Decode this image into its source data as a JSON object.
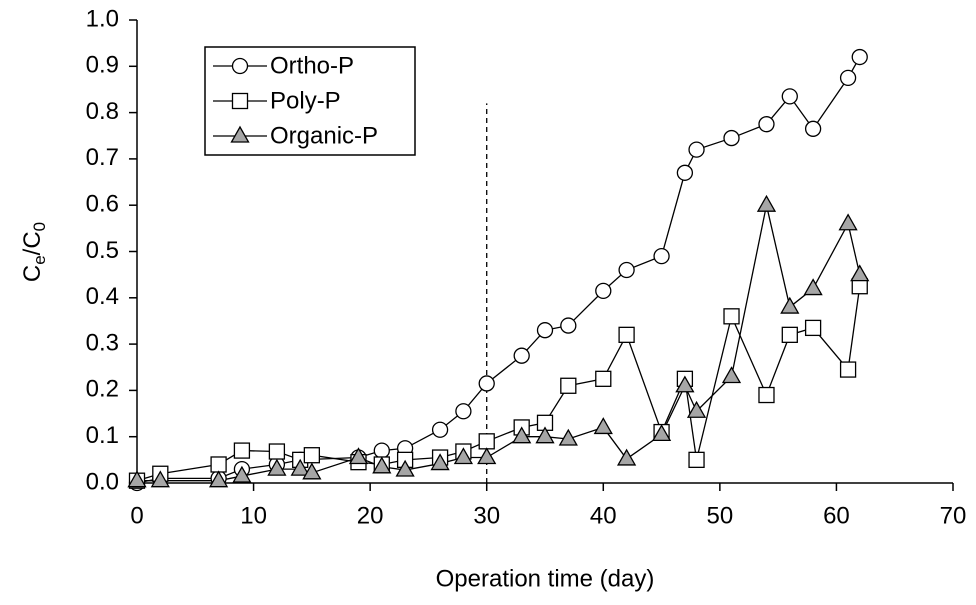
{
  "chart_data": {
    "type": "line",
    "xlabel": "Operation time  (day)",
    "ylabel": [
      "C",
      "e",
      "/C",
      "0"
    ],
    "xlim": [
      0,
      70
    ],
    "xticks": [
      0,
      10,
      20,
      30,
      40,
      50,
      60,
      70
    ],
    "ylim": [
      0,
      1
    ],
    "yticks": [
      {
        "value": 0,
        "label": "0.0"
      },
      {
        "value": 0.1,
        "label": "0.1"
      },
      {
        "value": 0.2,
        "label": "0.2"
      },
      {
        "value": 0.3,
        "label": "0.3"
      },
      {
        "value": 0.4,
        "label": "0.4"
      },
      {
        "value": 0.5,
        "label": "0.5"
      },
      {
        "value": 0.6,
        "label": "0.6"
      },
      {
        "value": 0.7,
        "label": "0.7"
      },
      {
        "value": 0.8,
        "label": "0.8"
      },
      {
        "value": 0.9,
        "label": "0.9"
      },
      {
        "value": 1,
        "label": "1.0"
      }
    ],
    "vline": {
      "x": 30,
      "ymax": 0.82
    },
    "legend": "upper left",
    "series": [
      {
        "name": "Ortho-P",
        "marker": "circle",
        "color": "#ffffff",
        "x": [
          0,
          2,
          7,
          9,
          12,
          14,
          19,
          21,
          23,
          26,
          28,
          30,
          33,
          35,
          37,
          40,
          42,
          45,
          47,
          48,
          51,
          54,
          56,
          58,
          61,
          62
        ],
        "values": [
          0,
          0.01,
          0.01,
          0.03,
          0.04,
          0.05,
          0.055,
          0.07,
          0.075,
          0.115,
          0.155,
          0.215,
          0.275,
          0.33,
          0.34,
          0.415,
          0.46,
          0.49,
          0.67,
          0.72,
          0.745,
          0.775,
          0.835,
          0.765,
          0.875,
          0.92
        ]
      },
      {
        "name": "Poly-P",
        "marker": "square",
        "color": "#ffffff",
        "x": [
          0,
          2,
          7,
          9,
          12,
          14,
          15,
          19,
          21,
          23,
          26,
          28,
          30,
          33,
          35,
          37,
          40,
          42,
          45,
          47,
          48,
          51,
          54,
          56,
          58,
          61,
          62
        ],
        "values": [
          0.005,
          0.02,
          0.04,
          0.07,
          0.068,
          0.05,
          0.06,
          0.045,
          0.04,
          0.05,
          0.055,
          0.068,
          0.09,
          0.12,
          0.13,
          0.21,
          0.225,
          0.32,
          0.11,
          0.225,
          0.05,
          0.36,
          0.19,
          0.32,
          0.335,
          0.245,
          0.425
        ]
      },
      {
        "name": "Organic-P",
        "marker": "triangle",
        "color": "#a6a6a6",
        "x": [
          0,
          2,
          7,
          9,
          12,
          14,
          15,
          19,
          21,
          23,
          26,
          28,
          30,
          33,
          35,
          37,
          40,
          42,
          45,
          47,
          48,
          51,
          54,
          56,
          58,
          61,
          62
        ],
        "values": [
          0.005,
          0.005,
          0.005,
          0.015,
          0.03,
          0.03,
          0.022,
          0.055,
          0.035,
          0.028,
          0.042,
          0.055,
          0.055,
          0.1,
          0.1,
          0.095,
          0.12,
          0.052,
          0.105,
          0.21,
          0.155,
          0.23,
          0.6,
          0.38,
          0.42,
          0.56,
          0.45
        ]
      }
    ]
  }
}
